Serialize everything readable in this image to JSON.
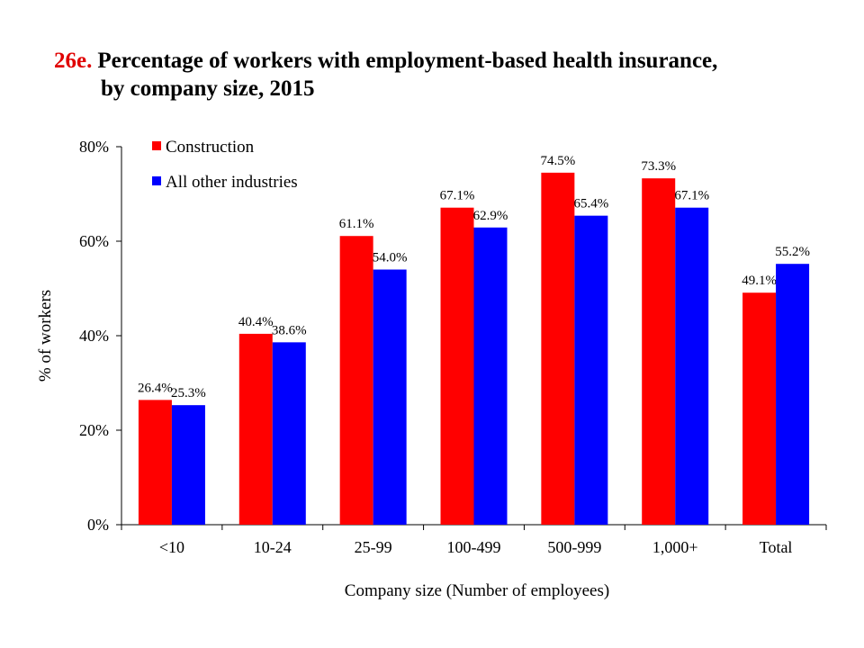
{
  "page": {
    "title_number": "26e.",
    "title_line1": "Percentage of workers with employment-based health insurance,",
    "title_line2": "by company size, 2015"
  },
  "chart_data": {
    "type": "bar",
    "xlabel": "Company size (Number of employees)",
    "ylabel": "% of workers",
    "ylim": [
      0,
      80
    ],
    "yticks": [
      "0%",
      "20%",
      "40%",
      "60%",
      "80%"
    ],
    "ytick_values": [
      0,
      20,
      40,
      60,
      80
    ],
    "categories": [
      "<10",
      "10-24",
      "25-99",
      "100-499",
      "500-999",
      "1,000+",
      "Total"
    ],
    "series": [
      {
        "name": "Construction",
        "color": "#ff0000",
        "values": [
          26.4,
          40.4,
          61.1,
          67.1,
          74.5,
          73.3,
          49.1
        ],
        "labels": [
          "26.4%",
          "40.4%",
          "61.1%",
          "67.1%",
          "74.5%",
          "73.3%",
          "49.1%"
        ]
      },
      {
        "name": "All other industries",
        "color": "#0000ff",
        "values": [
          25.3,
          38.6,
          54.0,
          62.9,
          65.4,
          67.1,
          55.2
        ],
        "labels": [
          "25.3%",
          "38.6%",
          "54.0%",
          "62.9%",
          "65.4%",
          "67.1%",
          "55.2%"
        ]
      }
    ],
    "legend_position": "top-left",
    "grid": false
  }
}
